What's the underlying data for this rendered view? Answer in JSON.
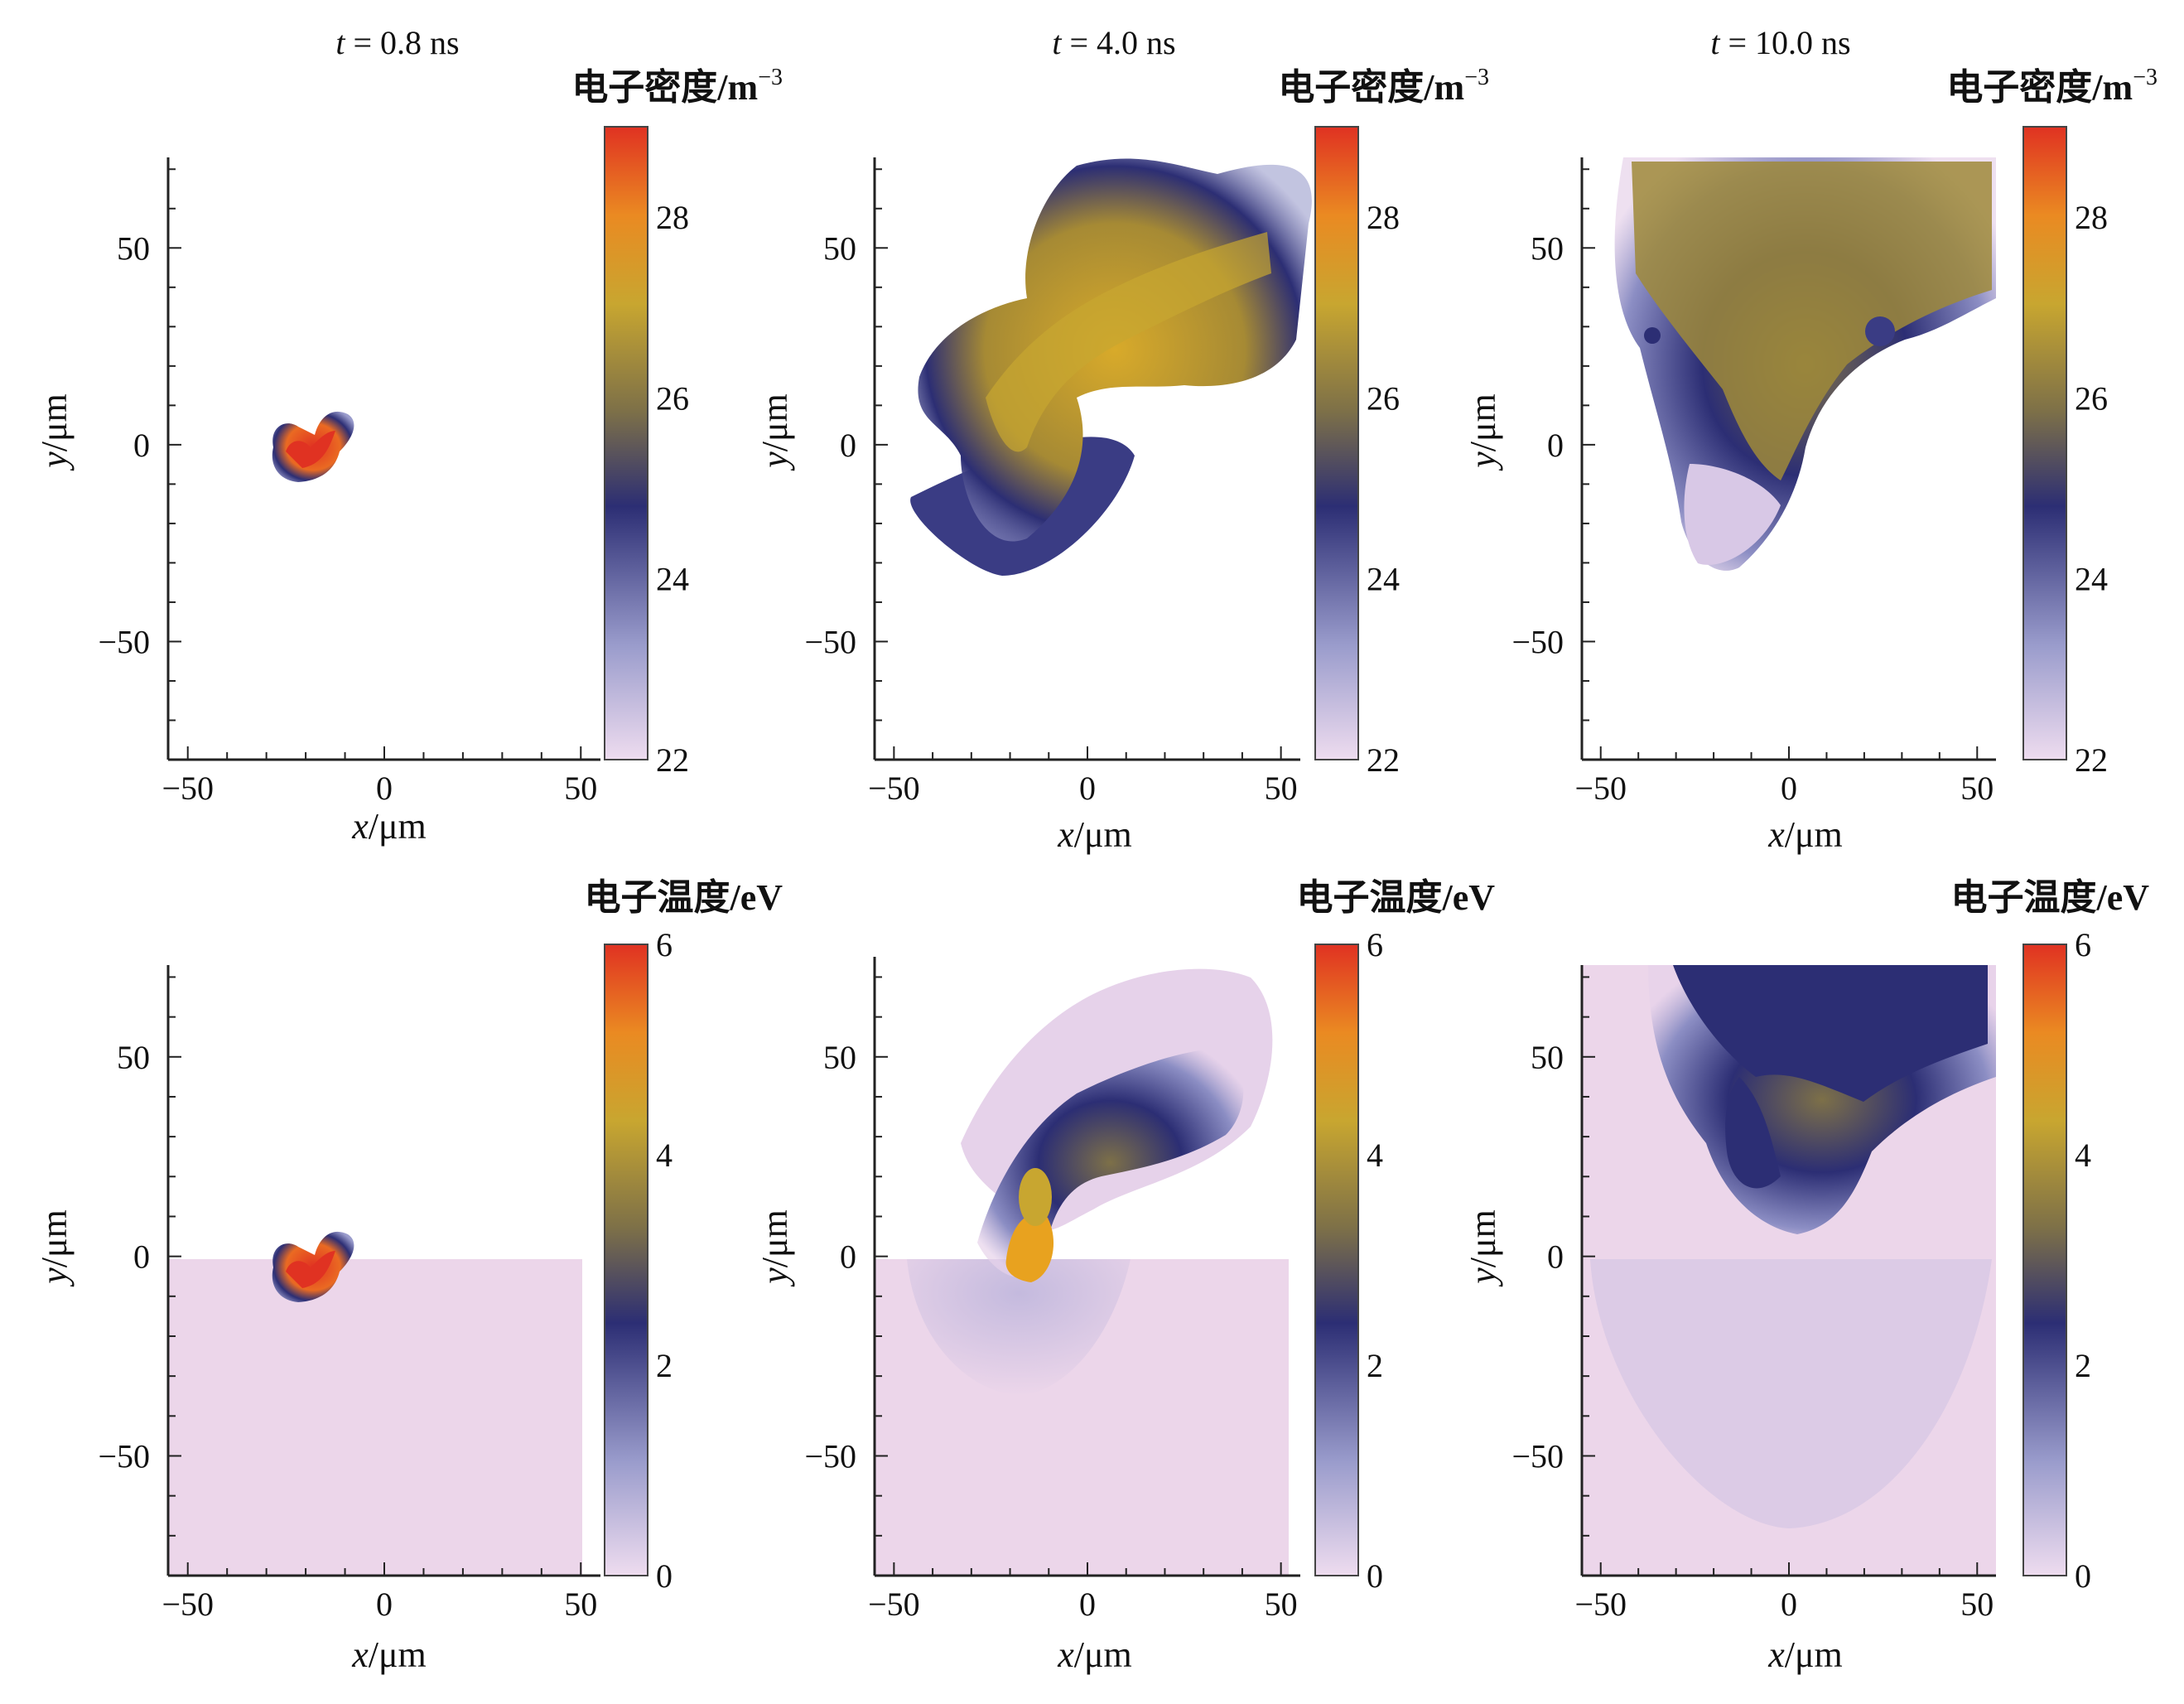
{
  "figure": {
    "time_prefix": "t",
    "time_values": [
      "= 0.8 ns",
      "= 4.0 ns",
      "= 10.0 ns"
    ],
    "colorbars": {
      "density": {
        "title": "电子密度/m",
        "exponent": "−3",
        "ticks": [
          "28",
          "26",
          "24",
          "22"
        ]
      },
      "temperature": {
        "title": "电子温度/eV",
        "ticks": [
          "6",
          "4",
          "2",
          "0"
        ]
      }
    },
    "axes": {
      "x_var": "x",
      "x_unit": "/μm",
      "y_var": "y",
      "y_unit": "/μm",
      "x_ticks": [
        "−50",
        "0",
        "50"
      ],
      "y_ticks": [
        "50",
        "0",
        "−50"
      ]
    },
    "colors": {
      "cmap": [
        "#eedcef",
        "#9a9ccc",
        "#2c2e74",
        "#7d7048",
        "#c8a630",
        "#ea8a22",
        "#e03222"
      ],
      "background_fill": "#ecd6ea",
      "axis": "#222222"
    }
  },
  "chart_data": [
    {
      "type": "heatmap",
      "row": "density",
      "time": "0.8 ns",
      "xlim": [
        -55,
        55
      ],
      "ylim": [
        -80,
        73
      ],
      "xticks": [
        -50,
        0,
        50
      ],
      "yticks": [
        -50,
        0,
        50
      ],
      "colorbar": {
        "label": "电子密度/m^-3",
        "range": [
          22,
          29
        ],
        "ticks": [
          22,
          24,
          26,
          28
        ]
      },
      "description": "small dense plume near (-20,-3), peak ~28"
    },
    {
      "type": "heatmap",
      "row": "density",
      "time": "4.0 ns",
      "xlim": [
        -55,
        55
      ],
      "ylim": [
        -80,
        73
      ],
      "xticks": [
        -50,
        0,
        50
      ],
      "yticks": [
        -50,
        0,
        50
      ],
      "colorbar": {
        "label": "电子密度/m^-3",
        "range": [
          22,
          29
        ],
        "ticks": [
          22,
          24,
          26,
          28
        ]
      },
      "description": "plume extends up-right to (50,70); ~26.5 in core"
    },
    {
      "type": "heatmap",
      "row": "density",
      "time": "10.0 ns",
      "xlim": [
        -55,
        55
      ],
      "ylim": [
        -80,
        73
      ],
      "xticks": [
        -50,
        0,
        50
      ],
      "yticks": [
        -50,
        0,
        50
      ],
      "colorbar": {
        "label": "电子密度/m^-3",
        "range": [
          22,
          29
        ],
        "ticks": [
          22,
          24,
          26,
          28
        ]
      },
      "description": "broad plume filling top region, ~26.5"
    },
    {
      "type": "heatmap",
      "row": "temperature",
      "time": "0.8 ns",
      "xlim": [
        -55,
        55
      ],
      "ylim": [
        -80,
        73
      ],
      "xticks": [
        -50,
        0,
        50
      ],
      "yticks": [
        -50,
        0,
        50
      ],
      "colorbar": {
        "label": "电子温度/eV",
        "range": [
          0,
          6
        ],
        "ticks": [
          0,
          2,
          4,
          6
        ]
      },
      "description": "hot spot ~6 eV near (-20,-3)"
    },
    {
      "type": "heatmap",
      "row": "temperature",
      "time": "4.0 ns",
      "xlim": [
        -55,
        55
      ],
      "ylim": [
        -80,
        73
      ],
      "xticks": [
        -50,
        0,
        50
      ],
      "yticks": [
        -50,
        0,
        50
      ],
      "colorbar": {
        "label": "电子温度/eV",
        "range": [
          0,
          6
        ],
        "ticks": [
          0,
          2,
          4,
          6
        ]
      },
      "description": "peak ~5 eV at (-18,0), plume ~3 eV"
    },
    {
      "type": "heatmap",
      "row": "temperature",
      "time": "10.0 ns",
      "xlim": [
        -55,
        55
      ],
      "ylim": [
        -80,
        73
      ],
      "xticks": [
        -50,
        0,
        50
      ],
      "yticks": [
        -50,
        0,
        50
      ],
      "colorbar": {
        "label": "电子温度/eV",
        "range": [
          0,
          6
        ],
        "ticks": [
          0,
          2,
          4,
          6
        ]
      },
      "description": "cooler plume ~2.5 eV"
    }
  ]
}
